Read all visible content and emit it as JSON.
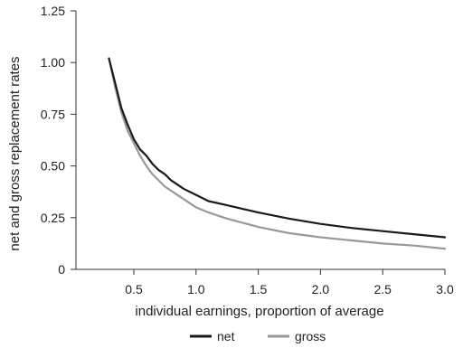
{
  "chart_data": {
    "type": "line",
    "title": "",
    "xlabel": "individual earnings, proportion of average",
    "ylabel": "net and gross replacement rates",
    "xlim": [
      0.3,
      3.0
    ],
    "ylim": [
      0,
      1.25
    ],
    "x_ticks": [
      0.5,
      1.0,
      1.5,
      2.0,
      2.5,
      3.0
    ],
    "x_tick_labels": [
      "0.5",
      "1.0",
      "1.5",
      "2.0",
      "2.5",
      "3.0"
    ],
    "y_ticks": [
      0,
      0.25,
      0.5,
      0.75,
      1.0,
      1.25
    ],
    "y_tick_labels": [
      "0",
      "0.25",
      "0.50",
      "0.75",
      "1.00",
      "1.25"
    ],
    "grid": false,
    "legend_position": "bottom",
    "series": [
      {
        "name": "net",
        "color": "#1a1a1a",
        "x": [
          0.3,
          0.35,
          0.4,
          0.45,
          0.5,
          0.55,
          0.6,
          0.65,
          0.7,
          0.75,
          0.8,
          0.9,
          1.0,
          1.1,
          1.25,
          1.5,
          1.75,
          2.0,
          2.25,
          2.5,
          2.75,
          3.0
        ],
        "y": [
          1.02,
          0.9,
          0.78,
          0.7,
          0.63,
          0.58,
          0.55,
          0.51,
          0.48,
          0.46,
          0.43,
          0.39,
          0.36,
          0.33,
          0.31,
          0.275,
          0.245,
          0.22,
          0.2,
          0.185,
          0.17,
          0.155
        ]
      },
      {
        "name": "gross",
        "color": "#999999",
        "x": [
          0.3,
          0.35,
          0.4,
          0.45,
          0.5,
          0.55,
          0.6,
          0.65,
          0.7,
          0.75,
          0.8,
          0.9,
          1.0,
          1.1,
          1.25,
          1.5,
          1.75,
          2.0,
          2.25,
          2.5,
          2.75,
          3.0
        ],
        "y": [
          1.02,
          0.88,
          0.76,
          0.67,
          0.61,
          0.55,
          0.5,
          0.46,
          0.43,
          0.4,
          0.38,
          0.34,
          0.3,
          0.275,
          0.245,
          0.205,
          0.175,
          0.155,
          0.14,
          0.125,
          0.115,
          0.1
        ]
      }
    ]
  }
}
